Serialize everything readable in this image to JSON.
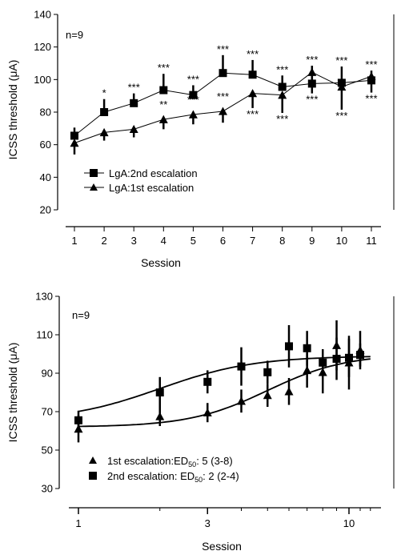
{
  "chart_data": [
    {
      "type": "line",
      "panel": "top",
      "xlabel": "Session",
      "ylabel": "ICSS threshold (μA)",
      "annotation": "n=9",
      "xlim": [
        0.5,
        11.3
      ],
      "ylim": [
        20,
        140
      ],
      "xticks": [
        1,
        2,
        3,
        4,
        5,
        6,
        7,
        8,
        9,
        10,
        11
      ],
      "yticks": [
        20,
        40,
        60,
        80,
        100,
        120,
        140
      ],
      "legend_placement": "lower-left",
      "series": [
        {
          "name": "LgA:2nd escalation",
          "marker": "square",
          "x": [
            1,
            2,
            3,
            4,
            5,
            6,
            7,
            8,
            9,
            10,
            11
          ],
          "values": [
            65.5,
            80,
            85.5,
            93.5,
            90.5,
            104,
            103,
            95.5,
            97.5,
            98,
            99.5
          ],
          "error": [
            5,
            8,
            6,
            10,
            6,
            11,
            9,
            7,
            11,
            10,
            6
          ],
          "significance": [
            "",
            "*",
            "***",
            "***",
            "***",
            "***",
            "***",
            "***",
            "***",
            "***",
            "***"
          ]
        },
        {
          "name": "LgA:1st escalation",
          "marker": "triangle",
          "x": [
            1,
            2,
            3,
            4,
            5,
            6,
            7,
            8,
            9,
            10,
            11
          ],
          "values": [
            61,
            67.5,
            69.5,
            75.5,
            78.5,
            80.5,
            91.5,
            90.5,
            104.5,
            95.5,
            102
          ],
          "error": [
            7,
            5,
            5,
            6,
            6,
            7,
            9,
            11,
            13,
            14,
            10
          ],
          "significance": [
            "",
            "",
            "",
            "**",
            "***",
            "***",
            "***",
            "***",
            "***",
            "***",
            "***"
          ]
        }
      ]
    },
    {
      "type": "scatter",
      "panel": "bottom",
      "xscale": "log",
      "xlabel": "Session",
      "ylabel": "ICSS threshold (μA)",
      "annotation": "n=9",
      "xlim": [
        1,
        12
      ],
      "ylim": [
        30,
        130
      ],
      "xticks": [
        1,
        3,
        10
      ],
      "yticks": [
        30,
        50,
        70,
        90,
        110,
        130
      ],
      "legend_placement": "lower-left",
      "series": [
        {
          "name": "1st escalation:ED50: 5 (3-8)",
          "legend_main": "1st escalation:ED",
          "legend_sub": "50",
          "legend_rest": ": 5 (3-8)",
          "marker": "triangle",
          "x": [
            1,
            2,
            3,
            4,
            5,
            6,
            7,
            8,
            9,
            10,
            11
          ],
          "values": [
            61,
            67.5,
            69.5,
            75.5,
            78.5,
            80.5,
            91.5,
            90.5,
            104.5,
            95.5,
            102
          ],
          "error": [
            7,
            5,
            5,
            6,
            6,
            7,
            9,
            11,
            13,
            14,
            10
          ],
          "fit": {
            "bottom": 62,
            "top": 100,
            "ed50": 5,
            "hill": 3
          }
        },
        {
          "name": "2nd escalation: ED50: 2 (2-4)",
          "legend_main": "2nd escalation: ED",
          "legend_sub": "50",
          "legend_rest": ": 2 (2-4)",
          "marker": "square",
          "x": [
            1,
            2,
            3,
            4,
            5,
            6,
            7,
            8,
            9,
            10,
            11
          ],
          "values": [
            65.5,
            80,
            85.5,
            93.5,
            90.5,
            104,
            103,
            95.5,
            97.5,
            98,
            99.5
          ],
          "error": [
            5,
            8,
            6,
            10,
            6,
            11,
            9,
            7,
            11,
            10,
            6
          ],
          "fit": {
            "bottom": 65,
            "top": 99,
            "ed50": 2,
            "hill": 2.5
          }
        }
      ]
    }
  ]
}
